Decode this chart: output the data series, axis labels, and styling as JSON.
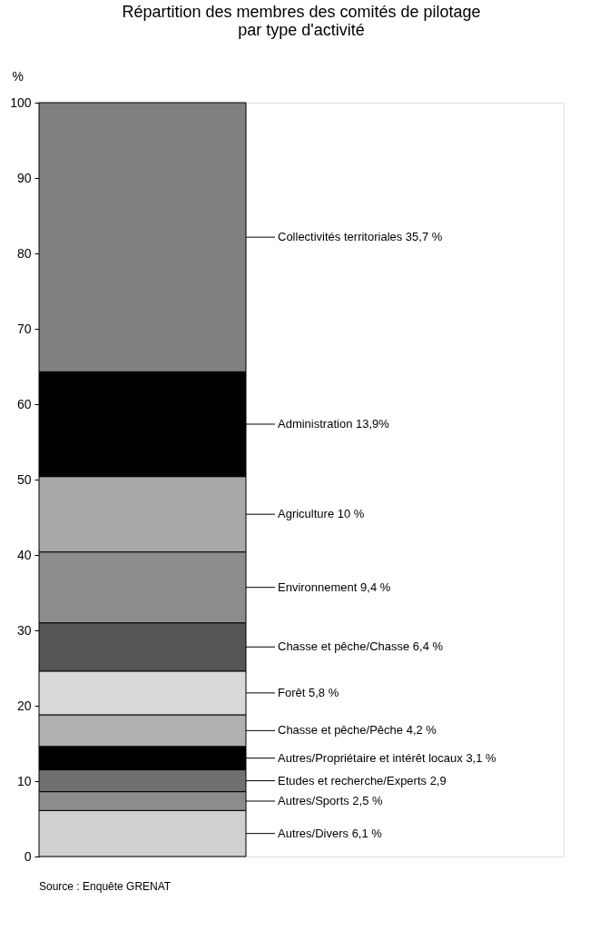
{
  "chart_data": {
    "type": "bar",
    "stacked": true,
    "title": "Répartition des membres des comités de pilotage\npar type d'activité",
    "ylabel": "%",
    "categories": [
      null
    ],
    "series": [
      {
        "name": "Autres/Divers",
        "color": "#d0d0d0",
        "values": [
          6.1
        ],
        "value_labels": [
          "6,1 %"
        ]
      },
      {
        "name": "Autres/Sports",
        "color": "#8c8c8c",
        "values": [
          2.5
        ],
        "value_labels": [
          "2,5 %"
        ]
      },
      {
        "name": "Etudes et recherche/Experts",
        "color": "#707070",
        "values": [
          2.9
        ],
        "value_labels": [
          "2,9"
        ]
      },
      {
        "name": "Autres/Propriétaire et intérêt locaux",
        "color": "#000000",
        "values": [
          3.1
        ],
        "value_labels": [
          "3,1 %"
        ]
      },
      {
        "name": "Chasse et pêche/Pêche",
        "color": "#b0b0b0",
        "values": [
          4.2
        ],
        "value_labels": [
          "4,2 %"
        ]
      },
      {
        "name": "Forêt",
        "color": "#d9d9d9",
        "values": [
          5.8
        ],
        "value_labels": [
          "5,8 %"
        ]
      },
      {
        "name": "Chasse et pêche/Chasse",
        "color": "#555555",
        "values": [
          6.4
        ],
        "value_labels": [
          "6,4 %"
        ]
      },
      {
        "name": "Environnement",
        "color": "#8c8c8c",
        "values": [
          9.4
        ],
        "value_labels": [
          "9,4 %"
        ]
      },
      {
        "name": "Agriculture",
        "color": "#a8a8a8",
        "values": [
          10
        ],
        "value_labels": [
          "10 %"
        ]
      },
      {
        "name": "Administration",
        "color": "#000000",
        "values": [
          13.9
        ],
        "value_labels": [
          "13,9%"
        ]
      },
      {
        "name": "Collectivités territoriales",
        "color": "#808080",
        "values": [
          35.7
        ],
        "value_labels": [
          "35,7 %"
        ]
      }
    ],
    "ylim": [
      0,
      100
    ],
    "yticks": [
      0,
      10,
      20,
      30,
      40,
      50,
      60,
      70,
      80,
      90,
      100
    ],
    "grid": false,
    "legend": false,
    "annotations": [
      "Source : Enquête GRENAT"
    ]
  }
}
